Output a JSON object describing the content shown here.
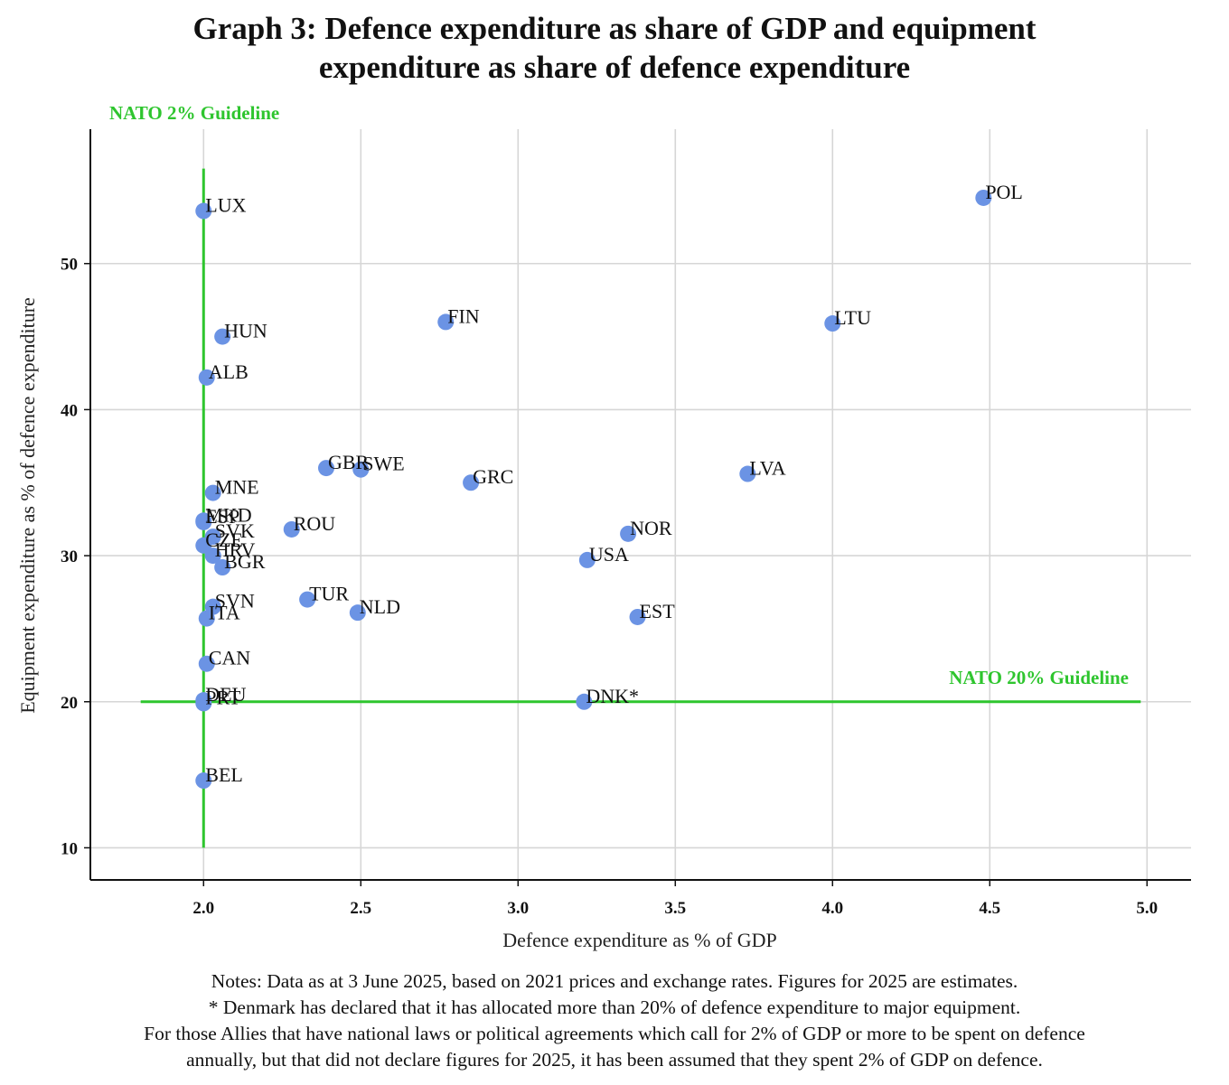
{
  "title": {
    "line1": "Graph 3: Defence expenditure as share of GDP and equipment",
    "line2": "expenditure as share of defence expenditure"
  },
  "colors": {
    "point": "#6b93e4",
    "guideline": "#2ec52e",
    "grid": "#d6d6d6",
    "axis": "#111111"
  },
  "chart_data": {
    "type": "scatter",
    "xlabel": "Defence expenditure as % of GDP",
    "ylabel": "Equipment expenditure as % of defence expenditure",
    "xlim": [
      1.64,
      5.14
    ],
    "ylim": [
      7.8,
      59.2
    ],
    "xticks": [
      2.0,
      2.5,
      3.0,
      3.5,
      4.0,
      4.5,
      5.0
    ],
    "xtick_labels": [
      "2.0",
      "2.5",
      "3.0",
      "3.5",
      "4.0",
      "4.5",
      "5.0"
    ],
    "yticks": [
      10,
      20,
      30,
      40,
      50
    ],
    "ytick_labels": [
      "10",
      "20",
      "30",
      "40",
      "50"
    ],
    "grid": true,
    "guidelines": [
      {
        "orientation": "vertical",
        "x": 2.0,
        "y_range": [
          10,
          56.5
        ],
        "label": "NATO 2% Guideline"
      },
      {
        "orientation": "horizontal",
        "y": 20,
        "x_range": [
          1.8,
          4.98
        ],
        "label": "NATO 20% Guideline"
      }
    ],
    "points": [
      {
        "label": "POL",
        "x": 4.48,
        "y": 54.5
      },
      {
        "label": "LUX",
        "x": 2.0,
        "y": 53.6
      },
      {
        "label": "FIN",
        "x": 2.77,
        "y": 46.0
      },
      {
        "label": "LTU",
        "x": 4.0,
        "y": 45.9
      },
      {
        "label": "HUN",
        "x": 2.06,
        "y": 45.0
      },
      {
        "label": "ALB",
        "x": 2.01,
        "y": 42.2
      },
      {
        "label": "GBR",
        "x": 2.39,
        "y": 36.0
      },
      {
        "label": "SWE",
        "x": 2.5,
        "y": 35.9
      },
      {
        "label": "LVA",
        "x": 3.73,
        "y": 35.6
      },
      {
        "label": "GRC",
        "x": 2.85,
        "y": 35.0
      },
      {
        "label": "MNE",
        "x": 2.03,
        "y": 34.3
      },
      {
        "label": "MKD",
        "x": 2.0,
        "y": 32.4
      },
      {
        "label": "ESP",
        "x": 2.0,
        "y": 32.3
      },
      {
        "label": "ROU",
        "x": 2.28,
        "y": 31.8
      },
      {
        "label": "NOR",
        "x": 3.35,
        "y": 31.5
      },
      {
        "label": "SVK",
        "x": 2.03,
        "y": 31.3
      },
      {
        "label": "CZE",
        "x": 2.0,
        "y": 30.7
      },
      {
        "label": "HRV",
        "x": 2.03,
        "y": 30.0
      },
      {
        "label": "USA",
        "x": 3.22,
        "y": 29.7
      },
      {
        "label": "BGR",
        "x": 2.06,
        "y": 29.2
      },
      {
        "label": "TUR",
        "x": 2.33,
        "y": 27.0
      },
      {
        "label": "SVN",
        "x": 2.03,
        "y": 26.5
      },
      {
        "label": "NLD",
        "x": 2.49,
        "y": 26.1
      },
      {
        "label": "EST",
        "x": 3.38,
        "y": 25.8
      },
      {
        "label": "ITA",
        "x": 2.01,
        "y": 25.7
      },
      {
        "label": "CAN",
        "x": 2.01,
        "y": 22.6
      },
      {
        "label": "DEU",
        "x": 2.0,
        "y": 20.1
      },
      {
        "label": "PRT",
        "x": 2.0,
        "y": 19.9
      },
      {
        "label": "DNK*",
        "x": 3.21,
        "y": 20.0
      },
      {
        "label": "BEL",
        "x": 2.0,
        "y": 14.6
      }
    ]
  },
  "notes": [
    "Notes: Data as at 3 June 2025, based on 2021 prices and exchange rates. Figures for 2025 are estimates.",
    "* Denmark has declared that it has allocated more than 20% of defence expenditure to major equipment.",
    "For those Allies that have national laws or political agreements which call for 2% of GDP or more to be spent on defence",
    "annually, but that did not declare figures for 2025, it has been assumed that they spent 2% of GDP on defence."
  ]
}
